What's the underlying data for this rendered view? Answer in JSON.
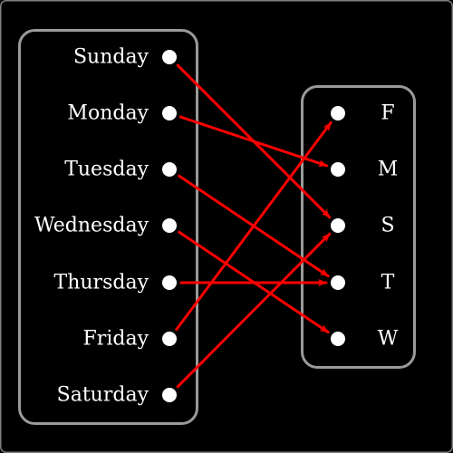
{
  "colors": {
    "background": "#000000",
    "frame": "#7f7f7f",
    "box_border": "#9a9a9a",
    "node": "#ffffff",
    "label": "#ffffff",
    "arrow": "#ff0000"
  },
  "domain_set": [
    "Sunday",
    "Monday",
    "Tuesday",
    "Wednesday",
    "Thursday",
    "Friday",
    "Saturday"
  ],
  "codomain_set": [
    "F",
    "M",
    "S",
    "T",
    "W"
  ],
  "mapping": [
    {
      "from": "Sunday",
      "to": "S"
    },
    {
      "from": "Monday",
      "to": "M"
    },
    {
      "from": "Tuesday",
      "to": "T"
    },
    {
      "from": "Wednesday",
      "to": "W"
    },
    {
      "from": "Thursday",
      "to": "T"
    },
    {
      "from": "Friday",
      "to": "F"
    },
    {
      "from": "Saturday",
      "to": "S"
    }
  ]
}
